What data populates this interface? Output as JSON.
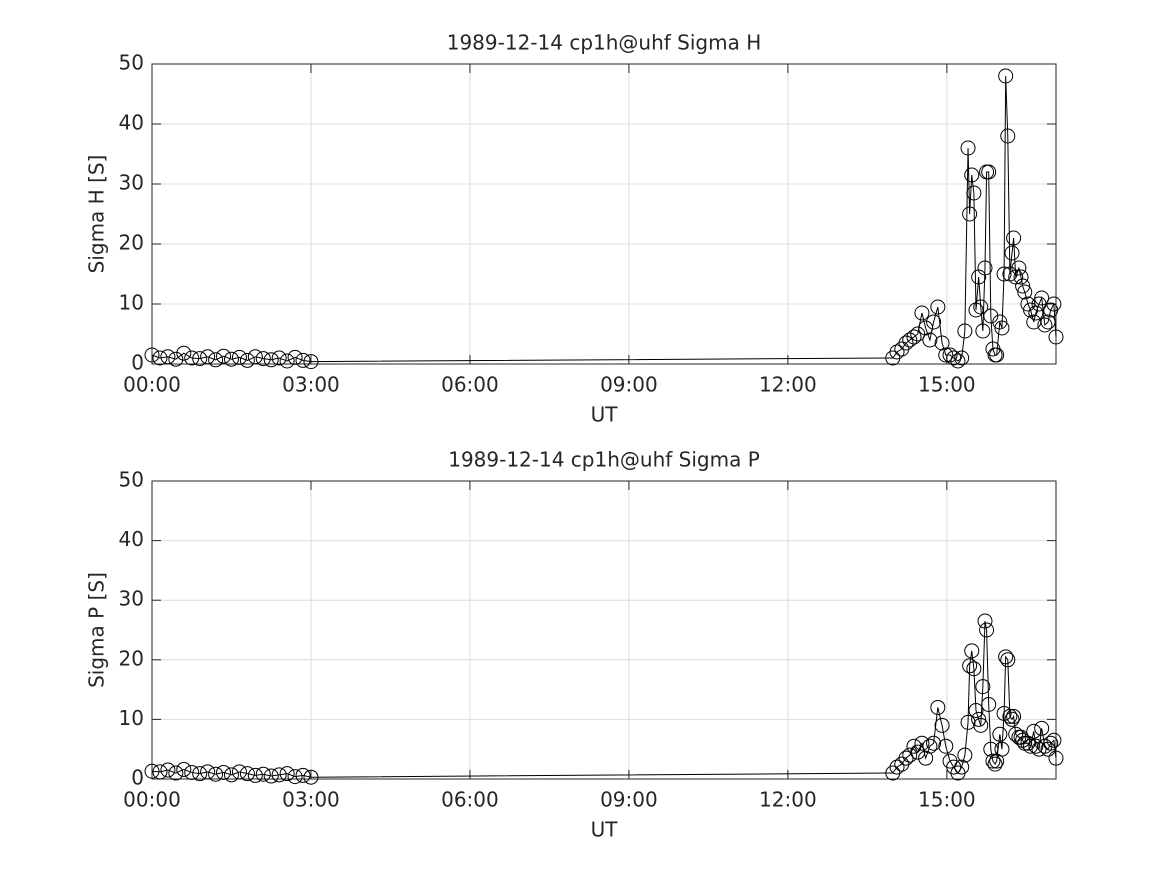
{
  "chart_data": [
    {
      "type": "line",
      "title": "1989-12-14  cp1h@uhf Sigma H",
      "xlabel": "UT",
      "ylabel": "Sigma H [S]",
      "xlim": [
        0,
        17.06
      ],
      "ylim": [
        0,
        50
      ],
      "xticks": [
        {
          "value": 0,
          "label": "00:00"
        },
        {
          "value": 3,
          "label": "03:00"
        },
        {
          "value": 6,
          "label": "06:00"
        },
        {
          "value": 9,
          "label": "09:00"
        },
        {
          "value": 12,
          "label": "12:00"
        },
        {
          "value": 15,
          "label": "15:00"
        }
      ],
      "yticks": [
        0,
        10,
        20,
        30,
        40,
        50
      ],
      "grid": true,
      "color": "#000000",
      "marker": "circle",
      "x": [
        0,
        0.15,
        0.3,
        0.45,
        0.6,
        0.75,
        0.9,
        1.05,
        1.2,
        1.35,
        1.5,
        1.65,
        1.8,
        1.95,
        2.1,
        2.25,
        2.4,
        2.55,
        2.7,
        2.85,
        3.0,
        13.98,
        14.06,
        14.15,
        14.23,
        14.3,
        14.38,
        14.45,
        14.53,
        14.6,
        14.68,
        14.75,
        14.83,
        14.91,
        14.98,
        15.06,
        15.13,
        15.21,
        15.28,
        15.34,
        15.4,
        15.43,
        15.47,
        15.51,
        15.55,
        15.6,
        15.64,
        15.68,
        15.72,
        15.75,
        15.79,
        15.83,
        15.87,
        15.91,
        15.94,
        16.0,
        16.04,
        16.08,
        16.11,
        16.15,
        16.19,
        16.23,
        16.26,
        16.3,
        16.36,
        16.4,
        16.43,
        16.47,
        16.53,
        16.58,
        16.64,
        16.68,
        16.74,
        16.79,
        16.85,
        16.91,
        16.96,
        17.02,
        17.06
      ],
      "values": [
        1.5,
        1,
        1.2,
        0.8,
        1.8,
        1,
        0.9,
        1.2,
        0.7,
        1.3,
        0.8,
        1.1,
        0.6,
        1.2,
        0.9,
        0.7,
        1,
        0.5,
        1.1,
        0.6,
        0.4,
        1,
        2,
        2.5,
        3.5,
        4,
        4.5,
        5,
        8.5,
        6,
        4,
        7,
        9.5,
        3.5,
        1.5,
        1.5,
        1,
        0.5,
        1,
        5.5,
        36,
        25,
        31.5,
        28.5,
        9,
        14.5,
        9.5,
        5.5,
        16,
        32,
        32,
        8,
        2.5,
        1.5,
        1.5,
        7,
        6,
        15,
        48,
        38,
        15,
        18.5,
        21,
        14.5,
        16,
        14.5,
        13,
        12,
        10,
        9,
        7,
        8.5,
        10,
        11,
        6.5,
        7,
        9,
        10,
        4.5
      ]
    },
    {
      "type": "line",
      "title": "1989-12-14  cp1h@uhf Sigma P",
      "xlabel": "UT",
      "ylabel": "Sigma P [S]",
      "xlim": [
        0,
        17.06
      ],
      "ylim": [
        0,
        50
      ],
      "xticks": [
        {
          "value": 0,
          "label": "00:00"
        },
        {
          "value": 3,
          "label": "03:00"
        },
        {
          "value": 6,
          "label": "06:00"
        },
        {
          "value": 9,
          "label": "09:00"
        },
        {
          "value": 12,
          "label": "12:00"
        },
        {
          "value": 15,
          "label": "15:00"
        }
      ],
      "yticks": [
        0,
        10,
        20,
        30,
        40,
        50
      ],
      "grid": true,
      "color": "#000000",
      "marker": "circle",
      "x": [
        0,
        0.15,
        0.3,
        0.45,
        0.6,
        0.75,
        0.9,
        1.05,
        1.2,
        1.35,
        1.5,
        1.65,
        1.8,
        1.95,
        2.1,
        2.25,
        2.4,
        2.55,
        2.7,
        2.85,
        3.0,
        13.98,
        14.06,
        14.15,
        14.23,
        14.3,
        14.38,
        14.45,
        14.53,
        14.6,
        14.68,
        14.75,
        14.83,
        14.91,
        14.98,
        15.06,
        15.13,
        15.21,
        15.28,
        15.34,
        15.4,
        15.43,
        15.47,
        15.51,
        15.55,
        15.6,
        15.64,
        15.68,
        15.72,
        15.75,
        15.79,
        15.83,
        15.87,
        15.91,
        15.94,
        16.0,
        16.04,
        16.08,
        16.11,
        16.15,
        16.19,
        16.23,
        16.26,
        16.3,
        16.36,
        16.4,
        16.43,
        16.47,
        16.53,
        16.58,
        16.64,
        16.68,
        16.74,
        16.79,
        16.85,
        16.91,
        16.96,
        17.02,
        17.06
      ],
      "values": [
        1.3,
        1.2,
        1.5,
        1,
        1.6,
        1.1,
        0.9,
        1.2,
        0.8,
        1.1,
        0.7,
        1.2,
        0.9,
        0.6,
        0.8,
        0.5,
        0.7,
        0.9,
        0.4,
        0.6,
        0.3,
        1,
        2,
        2.5,
        3.5,
        4,
        5.5,
        4.5,
        6,
        3.5,
        5.5,
        6,
        12,
        9,
        5.5,
        3,
        2,
        1,
        2,
        4,
        9.5,
        19,
        21.5,
        18.5,
        11.5,
        10,
        9,
        15.5,
        26.5,
        25,
        12.5,
        5,
        3,
        2.5,
        3,
        7.5,
        5,
        11,
        20.5,
        20,
        10.5,
        10,
        10.5,
        7.5,
        7,
        7,
        6.5,
        6,
        6,
        5.5,
        8,
        5.5,
        5,
        8.5,
        5.5,
        5,
        6,
        6.5,
        3.5
      ]
    }
  ]
}
